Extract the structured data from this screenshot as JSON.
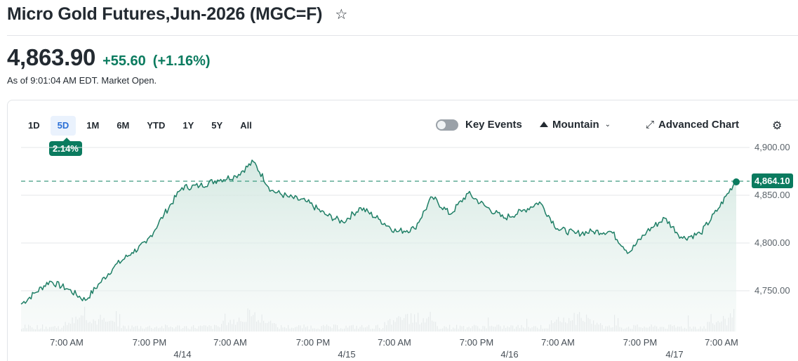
{
  "header": {
    "title": "Micro Gold Futures,Jun-2026 (MGC=F)",
    "watchlist_icon": "star-outline-icon"
  },
  "quote": {
    "price": "4,863.90",
    "change": "+55.60",
    "change_pct": "(+1.16%)",
    "as_of": "As of 9:01:04 AM EDT. Market Open."
  },
  "range_tabs": [
    {
      "label": "1D",
      "active": false
    },
    {
      "label": "5D",
      "active": true
    },
    {
      "label": "1M",
      "active": false
    },
    {
      "label": "6M",
      "active": false
    },
    {
      "label": "YTD",
      "active": false
    },
    {
      "label": "1Y",
      "active": false
    },
    {
      "label": "5Y",
      "active": false
    },
    {
      "label": "All",
      "active": false
    }
  ],
  "range_change_badge": "2.14%",
  "toolbar": {
    "key_events_label": "Key Events",
    "key_events_on": false,
    "chart_type_label": "Mountain",
    "advanced_chart_label": "Advanced Chart",
    "settings_icon": "gear-icon"
  },
  "colors": {
    "accent": "#0b7b5f",
    "line": "#1f7f66",
    "fill_top": "#cfe6de",
    "grid": "#e5e7ea",
    "volume": "#dfe1e4",
    "active_tab_bg": "#eaf2fd",
    "active_tab_text": "#2a6fd6"
  },
  "chart_data": {
    "type": "area",
    "title": "Micro Gold Futures,Jun-2026 (MGC=F) — 5D",
    "xlabel": "",
    "ylabel": "",
    "ylim": [
      4710,
      4910
    ],
    "y_ticks": [
      "4,900.00",
      "4,850.00",
      "4,800.00",
      "4,750.00"
    ],
    "x_ticks": [
      "7:00 AM",
      "7:00 PM",
      "7:00 AM",
      "7:00 PM",
      "7:00 AM",
      "7:00 PM",
      "7:00 AM",
      "7:00 PM",
      "7:00 AM"
    ],
    "x_dates": [
      "4/14",
      "4/15",
      "4/16",
      "4/17"
    ],
    "grid": true,
    "reference_line": {
      "value": 4864.1,
      "label": "4,864.10",
      "style": "dashed"
    },
    "last_value": 4864.1,
    "series": [
      {
        "name": "Price",
        "x_index": [
          0,
          4,
          8,
          13,
          18,
          22,
          26,
          31,
          35,
          40,
          45,
          50,
          55,
          60,
          65,
          70,
          75,
          80,
          85,
          90,
          95,
          100,
          105,
          110,
          115,
          120,
          125,
          130,
          135,
          140,
          145,
          150,
          155,
          160,
          165,
          170,
          175,
          180,
          185,
          190,
          195,
          200
        ],
        "values": [
          4736,
          4748,
          4760,
          4752,
          4740,
          4758,
          4775,
          4790,
          4800,
          4830,
          4858,
          4860,
          4866,
          4870,
          4885,
          4855,
          4848,
          4843,
          4830,
          4822,
          4837,
          4825,
          4812,
          4815,
          4848,
          4830,
          4852,
          4838,
          4826,
          4833,
          4843,
          4815,
          4810,
          4812,
          4812,
          4790,
          4812,
          4826,
          4805,
          4810,
          4836,
          4866
        ]
      },
      {
        "name": "Volume",
        "values_relative": "low baseline with spikes near each 7:00 AM open"
      }
    ]
  }
}
